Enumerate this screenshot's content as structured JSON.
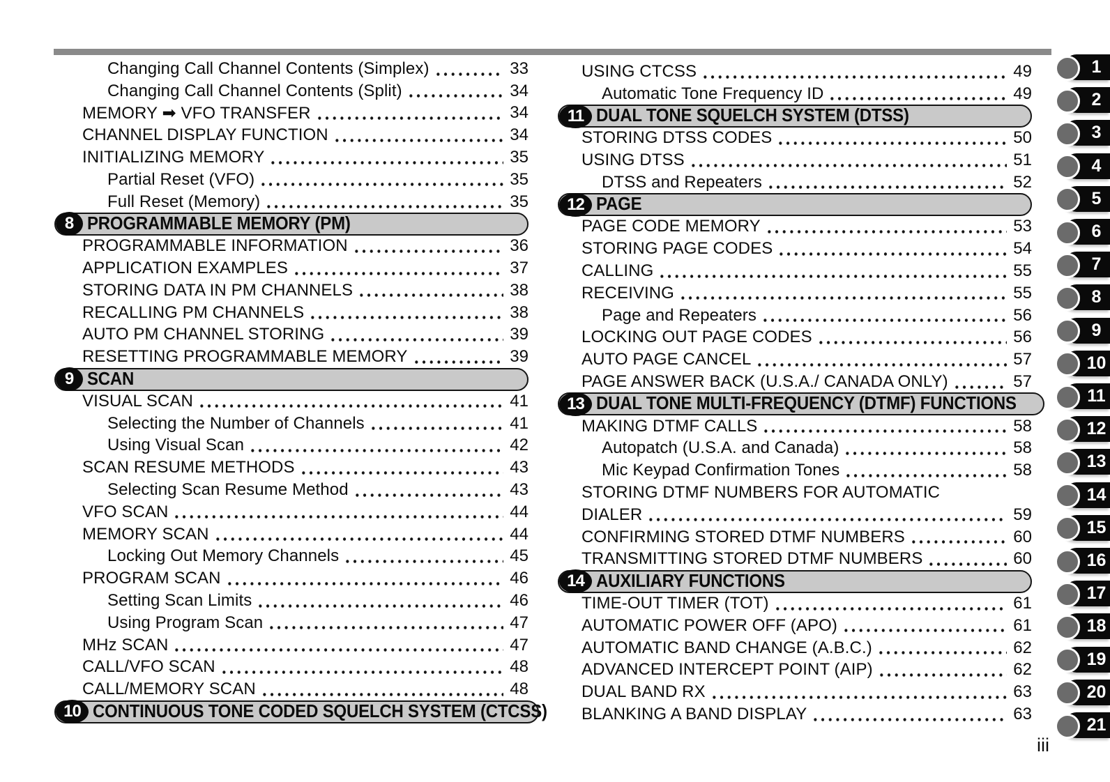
{
  "colors": {
    "header_bar_fill": "#c9c9c9",
    "header_badge": "#0b0b0b",
    "tab_black": "#0a0a0a",
    "tab_circle_gray": "#6b6b6b",
    "top_rule_gray": "#8a8a8a"
  },
  "page": {
    "number_label": "iii"
  },
  "tabs": [
    {
      "label": "1"
    },
    {
      "label": "2"
    },
    {
      "label": "3"
    },
    {
      "label": "4"
    },
    {
      "label": "5"
    },
    {
      "label": "6"
    },
    {
      "label": "7"
    },
    {
      "label": "8"
    },
    {
      "label": "9"
    },
    {
      "label": "10"
    },
    {
      "label": "11"
    },
    {
      "label": "12"
    },
    {
      "label": "13"
    },
    {
      "label": "14"
    },
    {
      "label": "15"
    },
    {
      "label": "16"
    },
    {
      "label": "17"
    },
    {
      "label": "18"
    },
    {
      "label": "19"
    },
    {
      "label": "20"
    },
    {
      "label": "21"
    }
  ],
  "columns": {
    "left": {
      "rows": [
        {
          "type": "entry",
          "indent": 1,
          "label": "Changing Call Channel Contents (Simplex)",
          "page": "33"
        },
        {
          "type": "entry",
          "indent": 1,
          "label": "Changing Call Channel Contents (Split)",
          "page": "34"
        },
        {
          "type": "entry",
          "indent": 0,
          "label": "MEMORY ➡ VFO TRANSFER",
          "page": "34"
        },
        {
          "type": "entry",
          "indent": 0,
          "label": "CHANNEL DISPLAY FUNCTION",
          "page": "34"
        },
        {
          "type": "entry",
          "indent": 0,
          "label": "INITIALIZING MEMORY",
          "page": "35"
        },
        {
          "type": "entry",
          "indent": 1,
          "label": "Partial Reset (VFO)",
          "page": "35"
        },
        {
          "type": "entry",
          "indent": 1,
          "label": "Full Reset (Memory)",
          "page": "35"
        },
        {
          "type": "header",
          "num": "8",
          "title": "PROGRAMMABLE MEMORY (PM)"
        },
        {
          "type": "entry",
          "indent": 0,
          "label": "PROGRAMMABLE INFORMATION",
          "page": "36"
        },
        {
          "type": "entry",
          "indent": 0,
          "label": "APPLICATION EXAMPLES",
          "page": "37"
        },
        {
          "type": "entry",
          "indent": 0,
          "label": "STORING DATA IN PM CHANNELS",
          "page": "38"
        },
        {
          "type": "entry",
          "indent": 0,
          "label": "RECALLING PM CHANNELS",
          "page": "38"
        },
        {
          "type": "entry",
          "indent": 0,
          "label": "AUTO PM CHANNEL STORING",
          "page": "39"
        },
        {
          "type": "entry",
          "indent": 0,
          "label": "RESETTING PROGRAMMABLE MEMORY",
          "page": "39"
        },
        {
          "type": "header",
          "num": "9",
          "title": "SCAN"
        },
        {
          "type": "entry",
          "indent": 0,
          "label": "VISUAL SCAN",
          "page": "41"
        },
        {
          "type": "entry",
          "indent": 1,
          "label": "Selecting the Number of Channels",
          "page": "41"
        },
        {
          "type": "entry",
          "indent": 1,
          "label": "Using Visual Scan",
          "page": "42"
        },
        {
          "type": "entry",
          "indent": 0,
          "label": "SCAN RESUME METHODS",
          "page": "43"
        },
        {
          "type": "entry",
          "indent": 1,
          "label": "Selecting Scan Resume Method",
          "page": "43"
        },
        {
          "type": "entry",
          "indent": 0,
          "label": "VFO SCAN",
          "page": "44"
        },
        {
          "type": "entry",
          "indent": 0,
          "label": "MEMORY SCAN",
          "page": "44"
        },
        {
          "type": "entry",
          "indent": 1,
          "label": "Locking Out Memory Channels",
          "page": "45"
        },
        {
          "type": "entry",
          "indent": 0,
          "label": "PROGRAM SCAN",
          "page": "46"
        },
        {
          "type": "entry",
          "indent": 1,
          "label": "Setting Scan Limits",
          "page": "46"
        },
        {
          "type": "entry",
          "indent": 1,
          "label": "Using Program Scan",
          "page": "47"
        },
        {
          "type": "entry",
          "indent": 0,
          "label": "MHz SCAN",
          "page": "47"
        },
        {
          "type": "entry",
          "indent": 0,
          "label": "CALL/VFO SCAN",
          "page": "48"
        },
        {
          "type": "entry",
          "indent": 0,
          "label": "CALL/MEMORY SCAN",
          "page": "48"
        },
        {
          "type": "header",
          "num": "10",
          "title": "CONTINUOUS TONE CODED SQUELCH SYSTEM (CTCSS)"
        }
      ]
    },
    "right": {
      "rows": [
        {
          "type": "entry",
          "indent": 0,
          "label": "USING CTCSS",
          "page": "49"
        },
        {
          "type": "entry",
          "indent": 1,
          "label": "Automatic Tone Frequency ID",
          "page": "49"
        },
        {
          "type": "header",
          "num": "11",
          "title": "DUAL TONE SQUELCH SYSTEM (DTSS)"
        },
        {
          "type": "entry",
          "indent": 0,
          "label": "STORING DTSS CODES",
          "page": "50"
        },
        {
          "type": "entry",
          "indent": 0,
          "label": "USING DTSS",
          "page": "51"
        },
        {
          "type": "entry",
          "indent": 1,
          "label": "DTSS and Repeaters",
          "page": "52"
        },
        {
          "type": "header",
          "num": "12",
          "title": "PAGE"
        },
        {
          "type": "entry",
          "indent": 0,
          "label": "PAGE CODE MEMORY",
          "page": "53"
        },
        {
          "type": "entry",
          "indent": 0,
          "label": "STORING PAGE CODES",
          "page": "54"
        },
        {
          "type": "entry",
          "indent": 0,
          "label": "CALLING",
          "page": "55"
        },
        {
          "type": "entry",
          "indent": 0,
          "label": "RECEIVING",
          "page": "55"
        },
        {
          "type": "entry",
          "indent": 1,
          "label": "Page and Repeaters",
          "page": "56"
        },
        {
          "type": "entry",
          "indent": 0,
          "label": "LOCKING OUT PAGE CODES",
          "page": "56"
        },
        {
          "type": "entry",
          "indent": 0,
          "label": "AUTO PAGE CANCEL",
          "page": "57"
        },
        {
          "type": "entry",
          "indent": 0,
          "label": "PAGE ANSWER BACK (U.S.A./ CANADA ONLY)",
          "page": "57"
        },
        {
          "type": "header",
          "num": "13",
          "title": "DUAL TONE MULTI-FREQUENCY (DTMF) FUNCTIONS"
        },
        {
          "type": "entry",
          "indent": 0,
          "label": "MAKING DTMF CALLS",
          "page": "58"
        },
        {
          "type": "entry",
          "indent": 1,
          "label": "Autopatch (U.S.A. and Canada)",
          "page": "58"
        },
        {
          "type": "entry",
          "indent": 1,
          "label": "Mic Keypad Confirmation Tones",
          "page": "58"
        },
        {
          "type": "entry_wrap",
          "indent": 0,
          "label": "STORING DTMF NUMBERS FOR AUTOMATIC"
        },
        {
          "type": "entry",
          "indent": 0,
          "label": "DIALER",
          "page": "59"
        },
        {
          "type": "entry",
          "indent": 0,
          "label": "CONFIRMING STORED DTMF NUMBERS",
          "page": "60"
        },
        {
          "type": "entry",
          "indent": 0,
          "label": "TRANSMITTING STORED DTMF NUMBERS",
          "page": "60"
        },
        {
          "type": "header",
          "num": "14",
          "title": "AUXILIARY FUNCTIONS"
        },
        {
          "type": "entry",
          "indent": 0,
          "label": "TIME-OUT TIMER (TOT)",
          "page": "61"
        },
        {
          "type": "entry",
          "indent": 0,
          "label": "AUTOMATIC POWER OFF (APO)",
          "page": "61"
        },
        {
          "type": "entry",
          "indent": 0,
          "label": "AUTOMATIC BAND CHANGE (A.B.C.)",
          "page": "62"
        },
        {
          "type": "entry",
          "indent": 0,
          "label": "ADVANCED INTERCEPT POINT (AIP)",
          "page": "62"
        },
        {
          "type": "entry",
          "indent": 0,
          "label": "DUAL BAND RX",
          "page": "63"
        },
        {
          "type": "entry",
          "indent": 0,
          "label": "BLANKING A BAND DISPLAY",
          "page": "63"
        }
      ]
    }
  }
}
